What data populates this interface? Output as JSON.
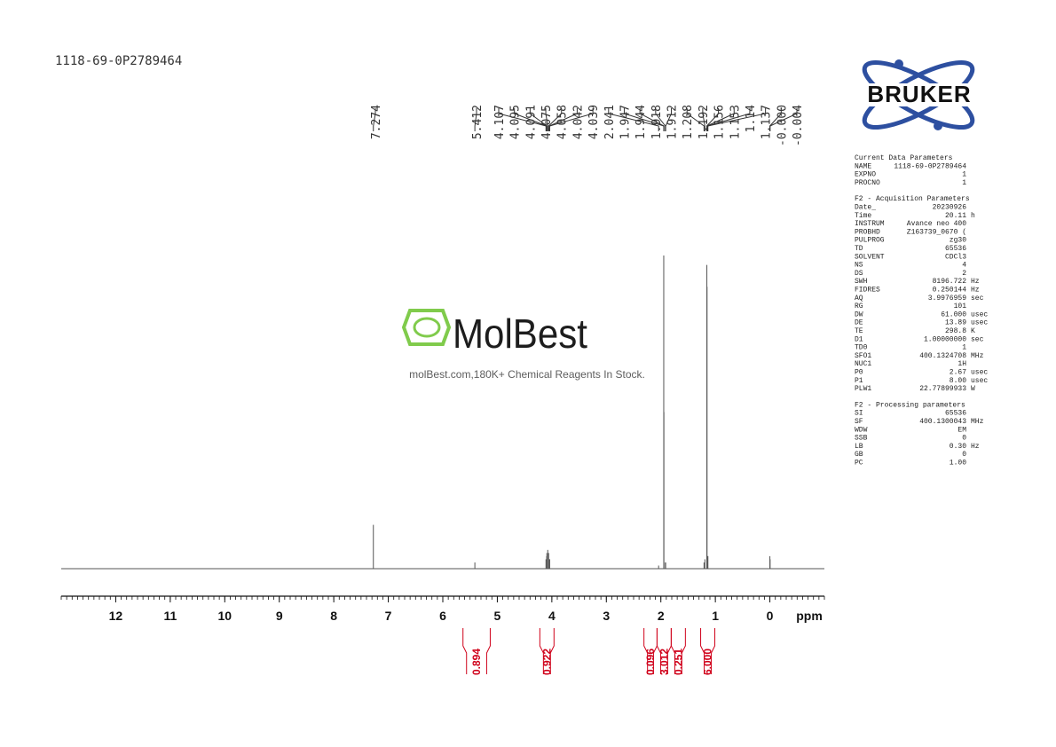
{
  "sample_id": "1118-69-0P2789464",
  "chart_data": {
    "type": "nmr",
    "xlim": [
      13,
      -1
    ],
    "xticks": [
      12,
      11,
      10,
      9,
      8,
      7,
      6,
      5,
      4,
      3,
      2,
      1,
      0
    ],
    "xticks_minor": [
      13,
      12.9,
      12.8,
      12.7,
      12.6,
      12.5,
      12.4,
      12.3,
      12.2,
      12.1,
      12,
      11.9,
      11.8,
      11.7,
      11.6,
      11.5,
      11.4,
      11.3,
      11.2,
      11.1,
      11,
      10.9,
      10.8,
      10.7,
      10.6,
      10.5,
      10.4,
      10.3,
      10.2,
      10.1,
      10,
      9.9,
      9.8,
      9.7,
      9.6,
      9.5,
      9.4,
      9.3,
      9.2,
      9.1,
      9,
      8.9,
      8.8,
      8.7,
      8.6,
      8.5,
      8.4,
      8.3,
      8.2,
      8.1,
      8,
      7.9,
      7.8,
      7.7,
      7.6,
      7.5,
      7.4,
      7.3,
      7.2,
      7.1,
      7,
      6.9,
      6.8,
      6.7,
      6.6,
      6.5,
      6.4,
      6.3,
      6.2,
      6.1,
      6,
      5.9,
      5.8,
      5.7,
      5.6,
      5.5,
      5.4,
      5.3,
      5.2,
      5.1,
      5,
      4.9,
      4.8,
      4.7,
      4.6,
      4.5,
      4.4,
      4.3,
      4.2,
      4.1,
      4,
      3.9,
      3.8,
      3.7,
      3.6,
      3.5,
      3.4,
      3.3,
      3.2,
      3.1,
      3,
      2.9,
      2.8,
      2.7,
      2.6,
      2.5,
      2.4,
      2.3,
      2.2,
      2.1,
      2,
      1.9,
      1.8,
      1.7,
      1.6,
      1.5,
      1.4,
      1.3,
      1.2,
      1.1,
      1,
      0.9,
      0.8,
      0.7,
      0.6,
      0.5,
      0.4,
      0.3,
      0.2,
      0.1,
      0,
      -0.1,
      -0.2,
      -0.3,
      -0.4,
      -0.5,
      -0.6,
      -0.7,
      -0.8,
      -0.9,
      -1
    ],
    "x_unit": "ppm",
    "peak_labels": [
      7.274,
      5.412,
      4.107,
      4.095,
      4.091,
      4.075,
      4.058,
      4.042,
      4.039,
      2.041,
      1.947,
      1.944,
      1.918,
      1.912,
      1.208,
      1.192,
      1.156,
      1.153,
      1.14,
      1.137,
      {
        "value": 0,
        "label": "-0.000"
      },
      -0.004
    ],
    "peak_heights": [
      14,
      2,
      3,
      4,
      5,
      6,
      5,
      3,
      3,
      1,
      100,
      50,
      2,
      2,
      2,
      3,
      97,
      90,
      4,
      4,
      4,
      3
    ],
    "integral_values": [
      0.894,
      0.922,
      0.096,
      3.012,
      0.251,
      {
        "value": 6,
        "label": "6.000"
      }
    ],
    "integral_ranges": [
      [
        5.63,
        5.13
      ],
      [
        4.22,
        3.96
      ],
      [
        2.31,
        2.07
      ],
      [
        2.07,
        1.81
      ],
      [
        1.81,
        1.55
      ],
      [
        1.27,
        1.01
      ]
    ],
    "color": "#555555",
    "integral_color": "#d0021b"
  },
  "watermark": {
    "logo": "MolBest",
    "tagline": "molBest.com,180K+ Chemical Reagents In Stock."
  },
  "brand": "BRUKER",
  "parameters": [
    {
      "title": "Current Data Parameters",
      "rows": [
        [
          "NAME",
          "1118-69-0P2789464"
        ],
        [
          "EXPNO",
          "1"
        ],
        [
          "PROCNO",
          "1"
        ]
      ]
    },
    {
      "title": "F2 - Acquisition Parameters",
      "rows": [
        [
          "Date_",
          "20230926"
        ],
        [
          "Time",
          "20.11",
          "h"
        ],
        [
          "INSTRUM",
          "Avance neo 400"
        ],
        [
          "PROBHD",
          "Z163739_0670 ("
        ],
        [
          "PULPROG",
          "zg30"
        ],
        [
          "TD",
          "65536"
        ],
        [
          "SOLVENT",
          "CDCl3"
        ],
        [
          "NS",
          "4"
        ],
        [
          "DS",
          "2"
        ],
        [
          "SWH",
          "8196.722",
          "Hz"
        ],
        [
          "FIDRES",
          "0.250144",
          "Hz"
        ],
        [
          "AQ",
          "3.9976959",
          "sec"
        ],
        [
          "RG",
          "101"
        ],
        [
          "DW",
          "61.000",
          "usec"
        ],
        [
          "DE",
          "13.89",
          "usec"
        ],
        [
          "TE",
          "298.8",
          "K"
        ],
        [
          "D1",
          "1.00000000",
          "sec"
        ],
        [
          "TD0",
          "1"
        ],
        [
          "SFO1",
          "400.1324708",
          "MHz"
        ],
        [
          "NUC1",
          "1H"
        ],
        [
          "P0",
          "2.67",
          "usec"
        ],
        [
          "P1",
          "8.00",
          "usec"
        ],
        [
          "PLW1",
          "22.77899933",
          "W"
        ]
      ]
    },
    {
      "title": "F2 - Processing parameters",
      "rows": [
        [
          "SI",
          "65536"
        ],
        [
          "SF",
          "400.1300043",
          "MHz"
        ],
        [
          "WDW",
          "EM"
        ],
        [
          "SSB",
          "0"
        ],
        [
          "LB",
          "0.30",
          "Hz"
        ],
        [
          "GB",
          "0"
        ],
        [
          "PC",
          "1.00"
        ]
      ]
    }
  ]
}
